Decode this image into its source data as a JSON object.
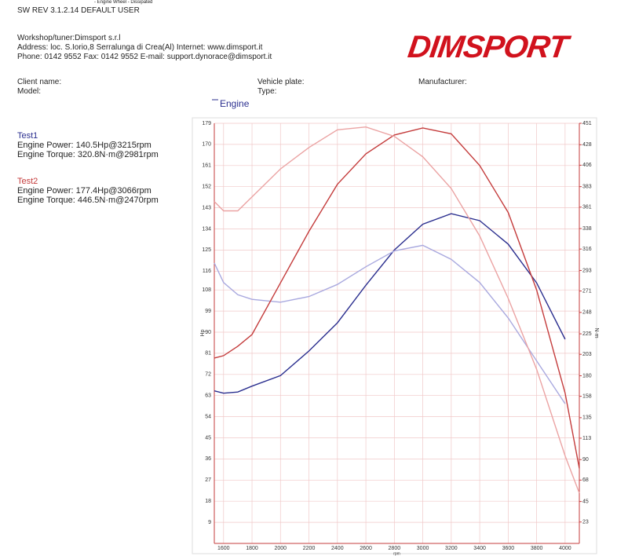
{
  "header": {
    "mode": "- Engine Wheel - Dissipated",
    "version": "SW REV 3.1.2.14   DEFAULT USER",
    "workshop": "Workshop/tuner:Dimsport s.r.l",
    "address": "Address: loc. S.Iorio,8 Serralunga di Crea(Al) Internet: www.dimsport.it",
    "phone": "Phone: 0142 9552 Fax: 0142 9552 E-mail: support.dynorace@dimsport.it",
    "logo": "DIMSPORT"
  },
  "vehicle": {
    "client": "Client name:",
    "model": "Model:",
    "plate": "Vehicle plate:",
    "type": "Type:",
    "manufacturer": "Manufacturer:"
  },
  "tests": [
    {
      "name": "Test1",
      "color": "#2b2f8f",
      "power": "Engine Power: 140.5Hp@3215rpm",
      "torque": "Engine Torque: 320.8N·m@2981rpm"
    },
    {
      "name": "Test2",
      "color": "#c43c3c",
      "power": "Engine Power: 177.4Hp@3066rpm",
      "torque": "Engine Torque: 446.5N·m@2470rpm"
    }
  ],
  "chart_data": {
    "type": "line",
    "legend": "Engine",
    "x_label": "rpm",
    "y_label": "Hp",
    "y2_label": "N·m",
    "grid": true,
    "x": [
      1535,
      1600,
      1700,
      1800,
      2000,
      2200,
      2400,
      2600,
      2800,
      3000,
      3200,
      3400,
      3600,
      3800,
      4000,
      4100
    ],
    "xlim": [
      1535,
      4100
    ],
    "xticks": [
      1600,
      1800,
      2000,
      2200,
      2400,
      2600,
      2800,
      3000,
      3200,
      3400,
      3600,
      3800,
      4000
    ],
    "ylim": [
      0,
      179
    ],
    "yticks": [
      9,
      18,
      27,
      36,
      45,
      54,
      63,
      72,
      81,
      90,
      99,
      108,
      116,
      125,
      134,
      143,
      152,
      161,
      170,
      179
    ],
    "y2lim": [
      0,
      451
    ],
    "y2ticks": [
      23,
      45,
      68,
      90,
      113,
      135,
      158,
      180,
      203,
      225,
      248,
      271,
      293,
      316,
      338,
      361,
      383,
      406,
      428,
      451
    ],
    "series": [
      {
        "color": "#2b2f8f",
        "values": [
          65,
          64,
          64.5,
          67,
          71.5,
          82,
          94,
          110,
          125,
          136,
          140.5,
          137.5,
          127.5,
          111,
          87,
          null
        ]
      },
      {
        "color": "#a9a9df",
        "axis": "y2",
        "values": [
          301,
          280,
          267,
          262,
          259,
          265,
          278,
          297,
          314,
          320,
          305,
          280,
          242,
          196,
          150,
          null
        ]
      },
      {
        "color": "#c43c3c",
        "values": [
          79,
          80,
          84,
          89,
          111,
          133,
          153,
          166,
          174,
          177,
          174.5,
          161,
          141,
          108,
          64,
          32
        ]
      },
      {
        "color": "#eba3a3",
        "axis": "y2",
        "values": [
          367,
          357,
          357,
          372,
          402,
          425,
          444,
          447,
          437,
          415,
          381,
          330,
          263,
          187,
          94,
          54
        ]
      }
    ]
  }
}
